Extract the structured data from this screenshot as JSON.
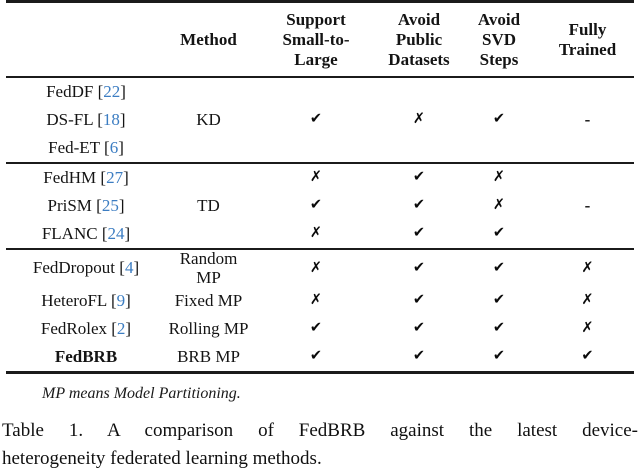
{
  "colors": {
    "citation_blue": "#3c7dc2",
    "text": "#141414",
    "rule": "#1b1b1b"
  },
  "header": {
    "corner": "",
    "method": "Method",
    "support": "Support\nSmall-to-\nLarge",
    "public": "Avoid\nPublic\nDatasets",
    "svd": "Avoid\nSVD\nSteps",
    "fully": "Fully\nTrained"
  },
  "groups": [
    {
      "method": "KD",
      "rows": [
        {
          "name": "FedDF",
          "lb": "[",
          "cite": "22",
          "rb": "]"
        },
        {
          "name": "DS-FL",
          "lb": "[",
          "cite": "18",
          "rb": "]"
        },
        {
          "name": "Fed-ET",
          "lb": "[",
          "cite": "6",
          "rb": "]"
        }
      ],
      "marks": {
        "support": "✔",
        "public": "✗",
        "svd": "✔",
        "fully": "-"
      }
    },
    {
      "method": "TD",
      "fully": "-",
      "rows": [
        {
          "name": "FedHM",
          "lb": "[",
          "cite": "27",
          "rb": "]",
          "marks": [
            "✗",
            "✔",
            "✗"
          ]
        },
        {
          "name": "PriSM",
          "lb": "[",
          "cite": "25",
          "rb": "]",
          "marks": [
            "✔",
            "✔",
            "✗"
          ]
        },
        {
          "name": "FLANC",
          "lb": "[",
          "cite": "24",
          "rb": "]",
          "marks": [
            "✗",
            "✔",
            "✔"
          ]
        }
      ]
    },
    {
      "rows": [
        {
          "name": "FedDropout",
          "lb": "[",
          "cite": "4",
          "rb": "]",
          "method": "Random MP",
          "marks": [
            "✗",
            "✔",
            "✔",
            "✗"
          ]
        },
        {
          "name": "HeteroFL",
          "lb": "[",
          "cite": "9",
          "rb": "]",
          "method": "Fixed MP",
          "marks": [
            "✗",
            "✔",
            "✔",
            "✗"
          ]
        },
        {
          "name": "FedRolex",
          "lb": "[",
          "cite": "2",
          "rb": "]",
          "method": "Rolling MP",
          "marks": [
            "✔",
            "✔",
            "✔",
            "✗"
          ]
        },
        {
          "name": "FedBRB",
          "method": "BRB MP",
          "marks": [
            "✔",
            "✔",
            "✔",
            "✔"
          ]
        }
      ]
    }
  ],
  "footnote": "MP means Model Partitioning.",
  "caption": {
    "line1": "Table 1. A comparison of FedBRB against the latest device-",
    "line2": "heterogeneity federated learning methods."
  }
}
